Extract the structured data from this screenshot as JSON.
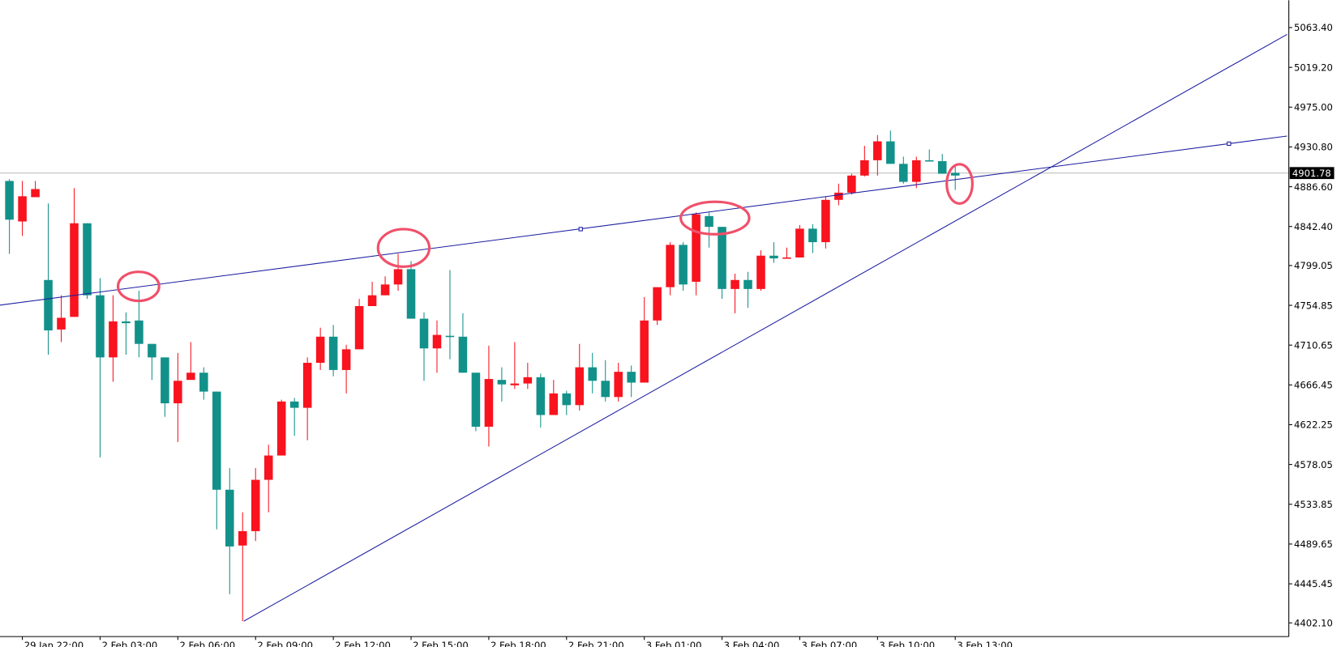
{
  "chart_data": {
    "type": "candlestick",
    "categories": [
      null,
      "29 Jan 22:00",
      null,
      null,
      null,
      null,
      null,
      "2 Feb 03:00",
      null,
      null,
      null,
      null,
      null,
      "2 Feb 06:00",
      null,
      null,
      null,
      null,
      null,
      "2 Feb 09:00",
      null,
      null,
      null,
      null,
      null,
      "2 Feb 12:00",
      null,
      null,
      null,
      null,
      null,
      "2 Feb 15:00",
      null,
      null,
      null,
      null,
      null,
      "2 Feb 18:00",
      null,
      null,
      null,
      null,
      null,
      "2 Feb 21:00",
      null,
      null,
      null,
      null,
      null,
      "3 Feb 01:00",
      null,
      null,
      null,
      null,
      null,
      "3 Feb 04:00",
      null,
      null,
      null,
      null,
      null,
      "3 Feb 07:00",
      null,
      null,
      null,
      null,
      null,
      "3 Feb 10:00",
      null,
      null,
      null,
      null,
      null,
      "3 Feb 13:00"
    ],
    "open": [
      4893,
      4848,
      4875,
      4783,
      4728,
      4742,
      4846,
      4766,
      4697,
      4737,
      4738,
      4712,
      4697,
      4646,
      4672,
      4680,
      4659,
      4550,
      4488,
      4504,
      4561,
      4588,
      4648,
      4641,
      4691,
      4720,
      4683,
      4706,
      4754,
      4766,
      4778,
      4795,
      4740,
      4707,
      4721,
      4720,
      4680,
      4620,
      4672,
      4666,
      4668,
      4675,
      4633,
      4657,
      4644,
      4686,
      4671,
      4653,
      4681,
      4669,
      4738,
      4775,
      4822,
      4781,
      4854,
      4842,
      4773,
      4783,
      4773,
      4810,
      4807,
      4808,
      4840,
      4825,
      4872,
      4880,
      4899,
      4916,
      4937,
      4912,
      4892,
      4916,
      4915,
      4902
    ],
    "high": [
      4895,
      4893,
      4893,
      4868,
      4766,
      4885,
      4846,
      4785,
      4766,
      4747,
      4771,
      4712,
      4697,
      4702,
      4714,
      4686,
      4659,
      4574,
      4525,
      4574,
      4600,
      4650,
      4652,
      4697,
      4730,
      4733,
      4711,
      4762,
      4781,
      4787,
      4812,
      4804,
      4747,
      4738,
      4794,
      4746,
      4680,
      4710,
      4686,
      4714,
      4691,
      4679,
      4672,
      4660,
      4712,
      4702,
      4694,
      4691,
      4688,
      4764,
      4775,
      4825,
      4825,
      4858,
      4858,
      4842,
      4790,
      4792,
      4816,
      4825,
      4819,
      4844,
      4845,
      4876,
      4890,
      4901,
      4932,
      4944,
      4949,
      4920,
      4920,
      4928,
      4923,
      4909
    ],
    "low": [
      4812,
      4832,
      4875,
      4700,
      4714,
      4742,
      4762,
      4586,
      4670,
      4700,
      4697,
      4672,
      4631,
      4603,
      4672,
      4650,
      4506,
      4434,
      4404,
      4493,
      4525,
      4588,
      4610,
      4605,
      4683,
      4676,
      4657,
      4706,
      4754,
      4766,
      4771,
      4740,
      4671,
      4680,
      4695,
      4680,
      4615,
      4598,
      4648,
      4662,
      4662,
      4619,
      4633,
      4633,
      4638,
      4657,
      4648,
      4648,
      4653,
      4669,
      4733,
      4766,
      4771,
      4766,
      4819,
      4762,
      4746,
      4752,
      4771,
      4802,
      4807,
      4808,
      4813,
      4818,
      4866,
      4878,
      4898,
      4899,
      4912,
      4890,
      4885,
      4915,
      4901,
      4883
    ],
    "close": [
      4850,
      4876,
      4884,
      4727,
      4741,
      4846,
      4766,
      4697,
      4737,
      4735,
      4712,
      4697,
      4646,
      4671,
      4680,
      4659,
      4550,
      4487,
      4504,
      4561,
      4588,
      4648,
      4641,
      4691,
      4720,
      4683,
      4706,
      4754,
      4766,
      4778,
      4795,
      4740,
      4707,
      4722,
      4720,
      4680,
      4620,
      4673,
      4667,
      4668,
      4675,
      4633,
      4657,
      4644,
      4686,
      4671,
      4653,
      4681,
      4669,
      4738,
      4775,
      4822,
      4778,
      4856,
      4842,
      4773,
      4783,
      4773,
      4810,
      4807,
      4808,
      4840,
      4825,
      4872,
      4880,
      4899,
      4916,
      4937,
      4912,
      4892,
      4916,
      4915,
      4901,
      4899
    ],
    "up_color": "#f8131f",
    "down_color": "#12918a",
    "ylim": [
      4386.9,
      5093.8
    ],
    "yticks": [
      {
        "value": 5063.4,
        "label": "5063.40"
      },
      {
        "value": 5019.2,
        "label": "5019.20"
      },
      {
        "value": 4975,
        "label": "4975.00"
      },
      {
        "value": 4930.8,
        "label": "4930.80"
      },
      {
        "value": 4886.6,
        "label": "4886.60"
      },
      {
        "value": 4842.4,
        "label": "4842.40"
      },
      {
        "value": 4799.05,
        "label": "4799.05"
      },
      {
        "value": 4754.85,
        "label": "4754.85"
      },
      {
        "value": 4710.65,
        "label": "4710.65"
      },
      {
        "value": 4666.45,
        "label": "4666.45"
      },
      {
        "value": 4622.25,
        "label": "4622.25"
      },
      {
        "value": 4578.05,
        "label": "4578.05"
      },
      {
        "value": 4533.85,
        "label": "4533.85"
      },
      {
        "value": 4489.65,
        "label": "4489.65"
      },
      {
        "value": 4445.45,
        "label": "4445.45"
      },
      {
        "value": 4402.1,
        "label": "4402.10"
      }
    ],
    "current_price": 4901.78
  }
}
